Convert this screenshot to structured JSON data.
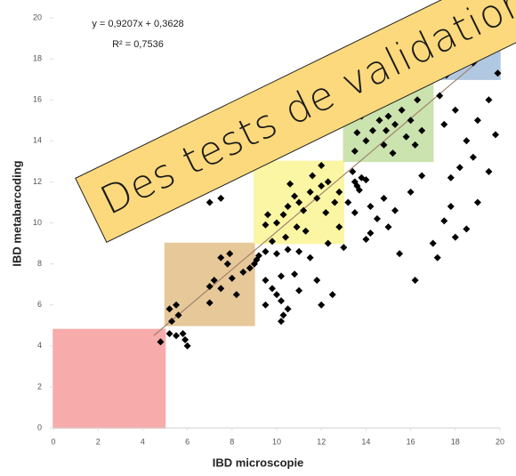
{
  "chart_data": {
    "type": "scatter",
    "equation": "y = 0,9207x + 0,3628",
    "r_squared": "R² = 0,7536",
    "xlabel": "IBD microscopie",
    "ylabel": "IBD metabarcoding",
    "xlim": [
      0,
      20
    ],
    "ylim": [
      0,
      20
    ],
    "xticks": [
      0,
      2,
      4,
      6,
      8,
      10,
      12,
      14,
      16,
      18,
      20
    ],
    "yticks": [
      0,
      2,
      4,
      6,
      8,
      10,
      12,
      14,
      16,
      18,
      20
    ],
    "color": "#000000",
    "trendline": {
      "slope": 0.9207,
      "intercept": 0.3628,
      "x": [
        4.5,
        20
      ],
      "color": "#a0826d"
    },
    "regions": [
      {
        "x": [
          0,
          5
        ],
        "y": [
          0,
          4.8
        ],
        "color": "#f7a3a3"
      },
      {
        "x": [
          5,
          9
        ],
        "y": [
          5,
          9
        ],
        "color": "#e4c38f"
      },
      {
        "x": [
          9,
          13
        ],
        "y": [
          9,
          13
        ],
        "color": "#fbf69a"
      },
      {
        "x": [
          13,
          17
        ],
        "y": [
          13,
          17
        ],
        "color": "#c6e1a6"
      },
      {
        "x": [
          17,
          20
        ],
        "y": [
          17,
          20
        ],
        "color": "#a9c3df"
      }
    ],
    "x": [
      4.8,
      5.2,
      5.5,
      5.8,
      5.9,
      6,
      5.3,
      5.5,
      5.2,
      5.6,
      7,
      7.5,
      7.2,
      8,
      7.8,
      7.5,
      7.9,
      8.5,
      8.2,
      9,
      8.8,
      7,
      9.2,
      9.5,
      9.8,
      9.1,
      10,
      10.5,
      11,
      11.5,
      10.2,
      10.8,
      9.5,
      9.8,
      10,
      9.5,
      10.2,
      10.5,
      10.3,
      10.2,
      11,
      12,
      12.5,
      11.8,
      10,
      10.3,
      10.5,
      11,
      11.2,
      10.8,
      11.5,
      11.8,
      12,
      12.3,
      11.6,
      10.6,
      10.9,
      11.3,
      12.2,
      12.6,
      10.4,
      9.5,
      9.6,
      12.8,
      7,
      7.5,
      12,
      13.5,
      13.6,
      13.8,
      13.4,
      13.7,
      14,
      13.2,
      13.5,
      14.2,
      14.5,
      14.8,
      14.2,
      15,
      15.3,
      16,
      16.5,
      15.5,
      16.2,
      17,
      17.5,
      18,
      17.2,
      18.5,
      17.8,
      19,
      19.5,
      18.8,
      17.8,
      12.8,
      12.3,
      13,
      14,
      13.5,
      14,
      14.3,
      14.6,
      15,
      15.3,
      15.6,
      16,
      15.8,
      14.8,
      14.2,
      13.8,
      16.3,
      15.5,
      14.5,
      16.5,
      13.6,
      15.2,
      16.2,
      14.9,
      13.8,
      14.5,
      15.5,
      16.5,
      16.8,
      15.8,
      17.5,
      18,
      18.5,
      19,
      19.5,
      17.3,
      18.2,
      19.8,
      17.5,
      18,
      18.5,
      19,
      19.5,
      19.8,
      18.8,
      18.2,
      17.8,
      19.2,
      19.7,
      18.5,
      17.3,
      19.9,
      17.6
    ],
    "values": [
      4.2,
      4.6,
      4.5,
      4.6,
      4.3,
      4,
      5.2,
      6,
      5.8,
      5.5,
      6.1,
      6.8,
      7.2,
      7.3,
      8,
      8.3,
      8.5,
      7.6,
      6.5,
      8,
      7.8,
      6.9,
      8.4,
      8.6,
      9.1,
      8.2,
      8.5,
      8.7,
      8.6,
      8.3,
      7.4,
      7.5,
      7.2,
      6.8,
      6.5,
      6,
      6.2,
      5.8,
      5.5,
      5.2,
      6.7,
      6,
      6.5,
      7.2,
      10,
      10.4,
      10.8,
      11,
      10.6,
      11.3,
      11.5,
      11.2,
      11.8,
      12,
      12.3,
      11.9,
      9.8,
      9.6,
      10.5,
      11,
      9.3,
      9.9,
      10.4,
      11.5,
      11,
      11.2,
      12.8,
      12,
      11.8,
      12.2,
      12.5,
      11.6,
      12.1,
      11,
      10.5,
      10.8,
      10.2,
      11.2,
      9.5,
      9.8,
      10.6,
      11.5,
      12.3,
      8.5,
      7.2,
      9,
      10.1,
      9.3,
      8.3,
      9.7,
      10.8,
      11,
      12.5,
      13.2,
      12.2,
      9.8,
      9,
      8.8,
      9.2,
      13.5,
      14,
      14.5,
      15,
      15.2,
      14.8,
      15.5,
      15,
      14.2,
      13.8,
      15.5,
      15.2,
      16,
      16.2,
      16,
      14.5,
      14.4,
      13.4,
      13.8,
      14.5,
      17.2,
      17.5,
      17.8,
      17.3,
      18.3,
      16.9,
      14.8,
      15.5,
      14,
      15,
      16,
      16.2,
      12.7,
      14.3,
      18,
      18.5,
      19,
      19.5,
      19.2,
      18.5,
      17.8,
      19.6,
      19,
      18.2,
      19.8,
      18.2,
      17.5,
      17.3,
      17.2
    ]
  },
  "banner": {
    "text": "Des tests de validation",
    "color": "#fcd97c"
  }
}
